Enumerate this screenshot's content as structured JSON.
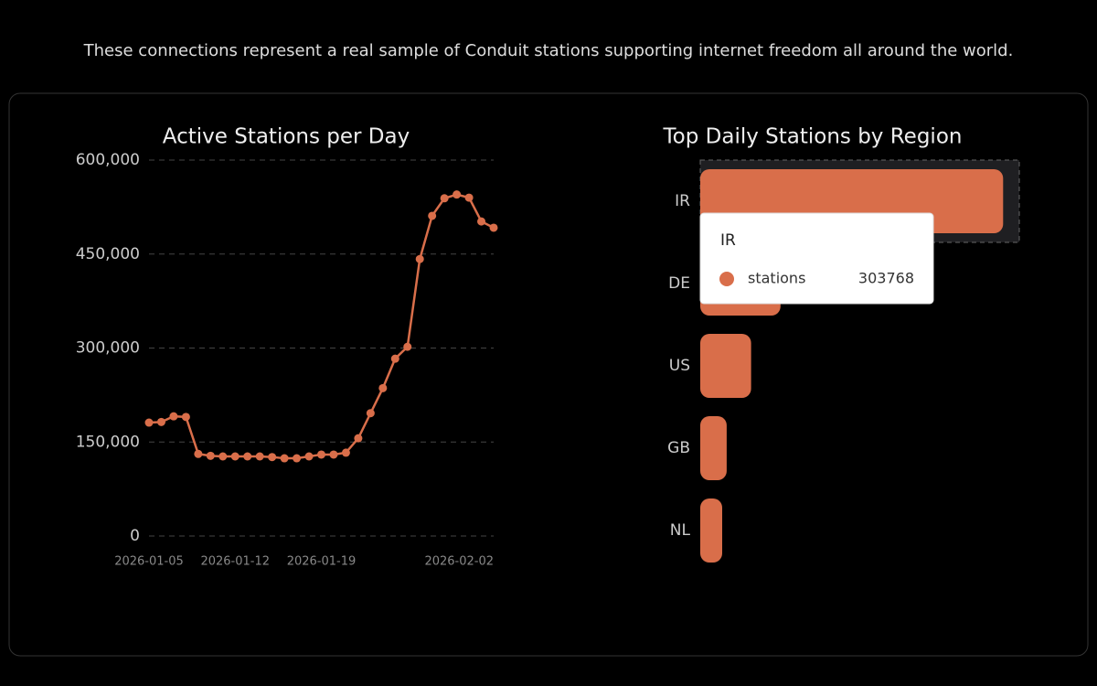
{
  "header": {
    "text": "These connections represent a real sample of Conduit stations supporting internet freedom all around the world."
  },
  "chart_data": [
    {
      "type": "line",
      "title": "Active Stations per Day",
      "x": [
        "2026-01-05",
        "2026-01-06",
        "2026-01-07",
        "2026-01-08",
        "2026-01-09",
        "2026-01-10",
        "2026-01-11",
        "2026-01-12",
        "2026-01-13",
        "2026-01-14",
        "2026-01-15",
        "2026-01-16",
        "2026-01-17",
        "2026-01-18",
        "2026-01-19",
        "2026-01-20",
        "2026-01-21",
        "2026-01-22",
        "2026-01-23",
        "2026-01-24",
        "2026-01-25",
        "2026-01-26",
        "2026-01-27",
        "2026-01-28",
        "2026-01-29",
        "2026-01-30",
        "2026-01-31",
        "2026-02-01",
        "2026-02-02"
      ],
      "series": [
        {
          "name": "stations",
          "color": "#d96e4a",
          "values": [
            181000,
            182000,
            191000,
            190000,
            131000,
            128000,
            127000,
            127000,
            127000,
            127000,
            126000,
            124000,
            124000,
            127000,
            130000,
            130000,
            133000,
            156000,
            196000,
            236000,
            283000,
            302000,
            442000,
            511000,
            539000,
            545000,
            540000,
            502000,
            492000
          ]
        }
      ],
      "xticks": [
        "2026-01-05",
        "2026-01-12",
        "2026-01-19",
        "2026-02-02"
      ],
      "ylim": [
        0,
        600000
      ],
      "yticks": [
        0,
        {
          "value": 150000,
          "label": "150,000"
        },
        {
          "value": 300000,
          "label": "300,000"
        },
        {
          "value": 450000,
          "label": "450,000"
        },
        {
          "value": 600000,
          "label": "600,000"
        }
      ],
      "grid": true
    },
    {
      "type": "hbar",
      "title": "Top Daily Stations by Region",
      "categories": [
        "IR",
        "DE",
        "US",
        "GB",
        "NL"
      ],
      "series": [
        {
          "name": "stations",
          "color": "#d96e4a",
          "values": [
            303768,
            80500,
            51000,
            26500,
            22000
          ]
        }
      ],
      "xlim": [
        0,
        320000
      ]
    }
  ],
  "tooltip": {
    "category": "IR",
    "series": "stations",
    "value": 303768
  }
}
